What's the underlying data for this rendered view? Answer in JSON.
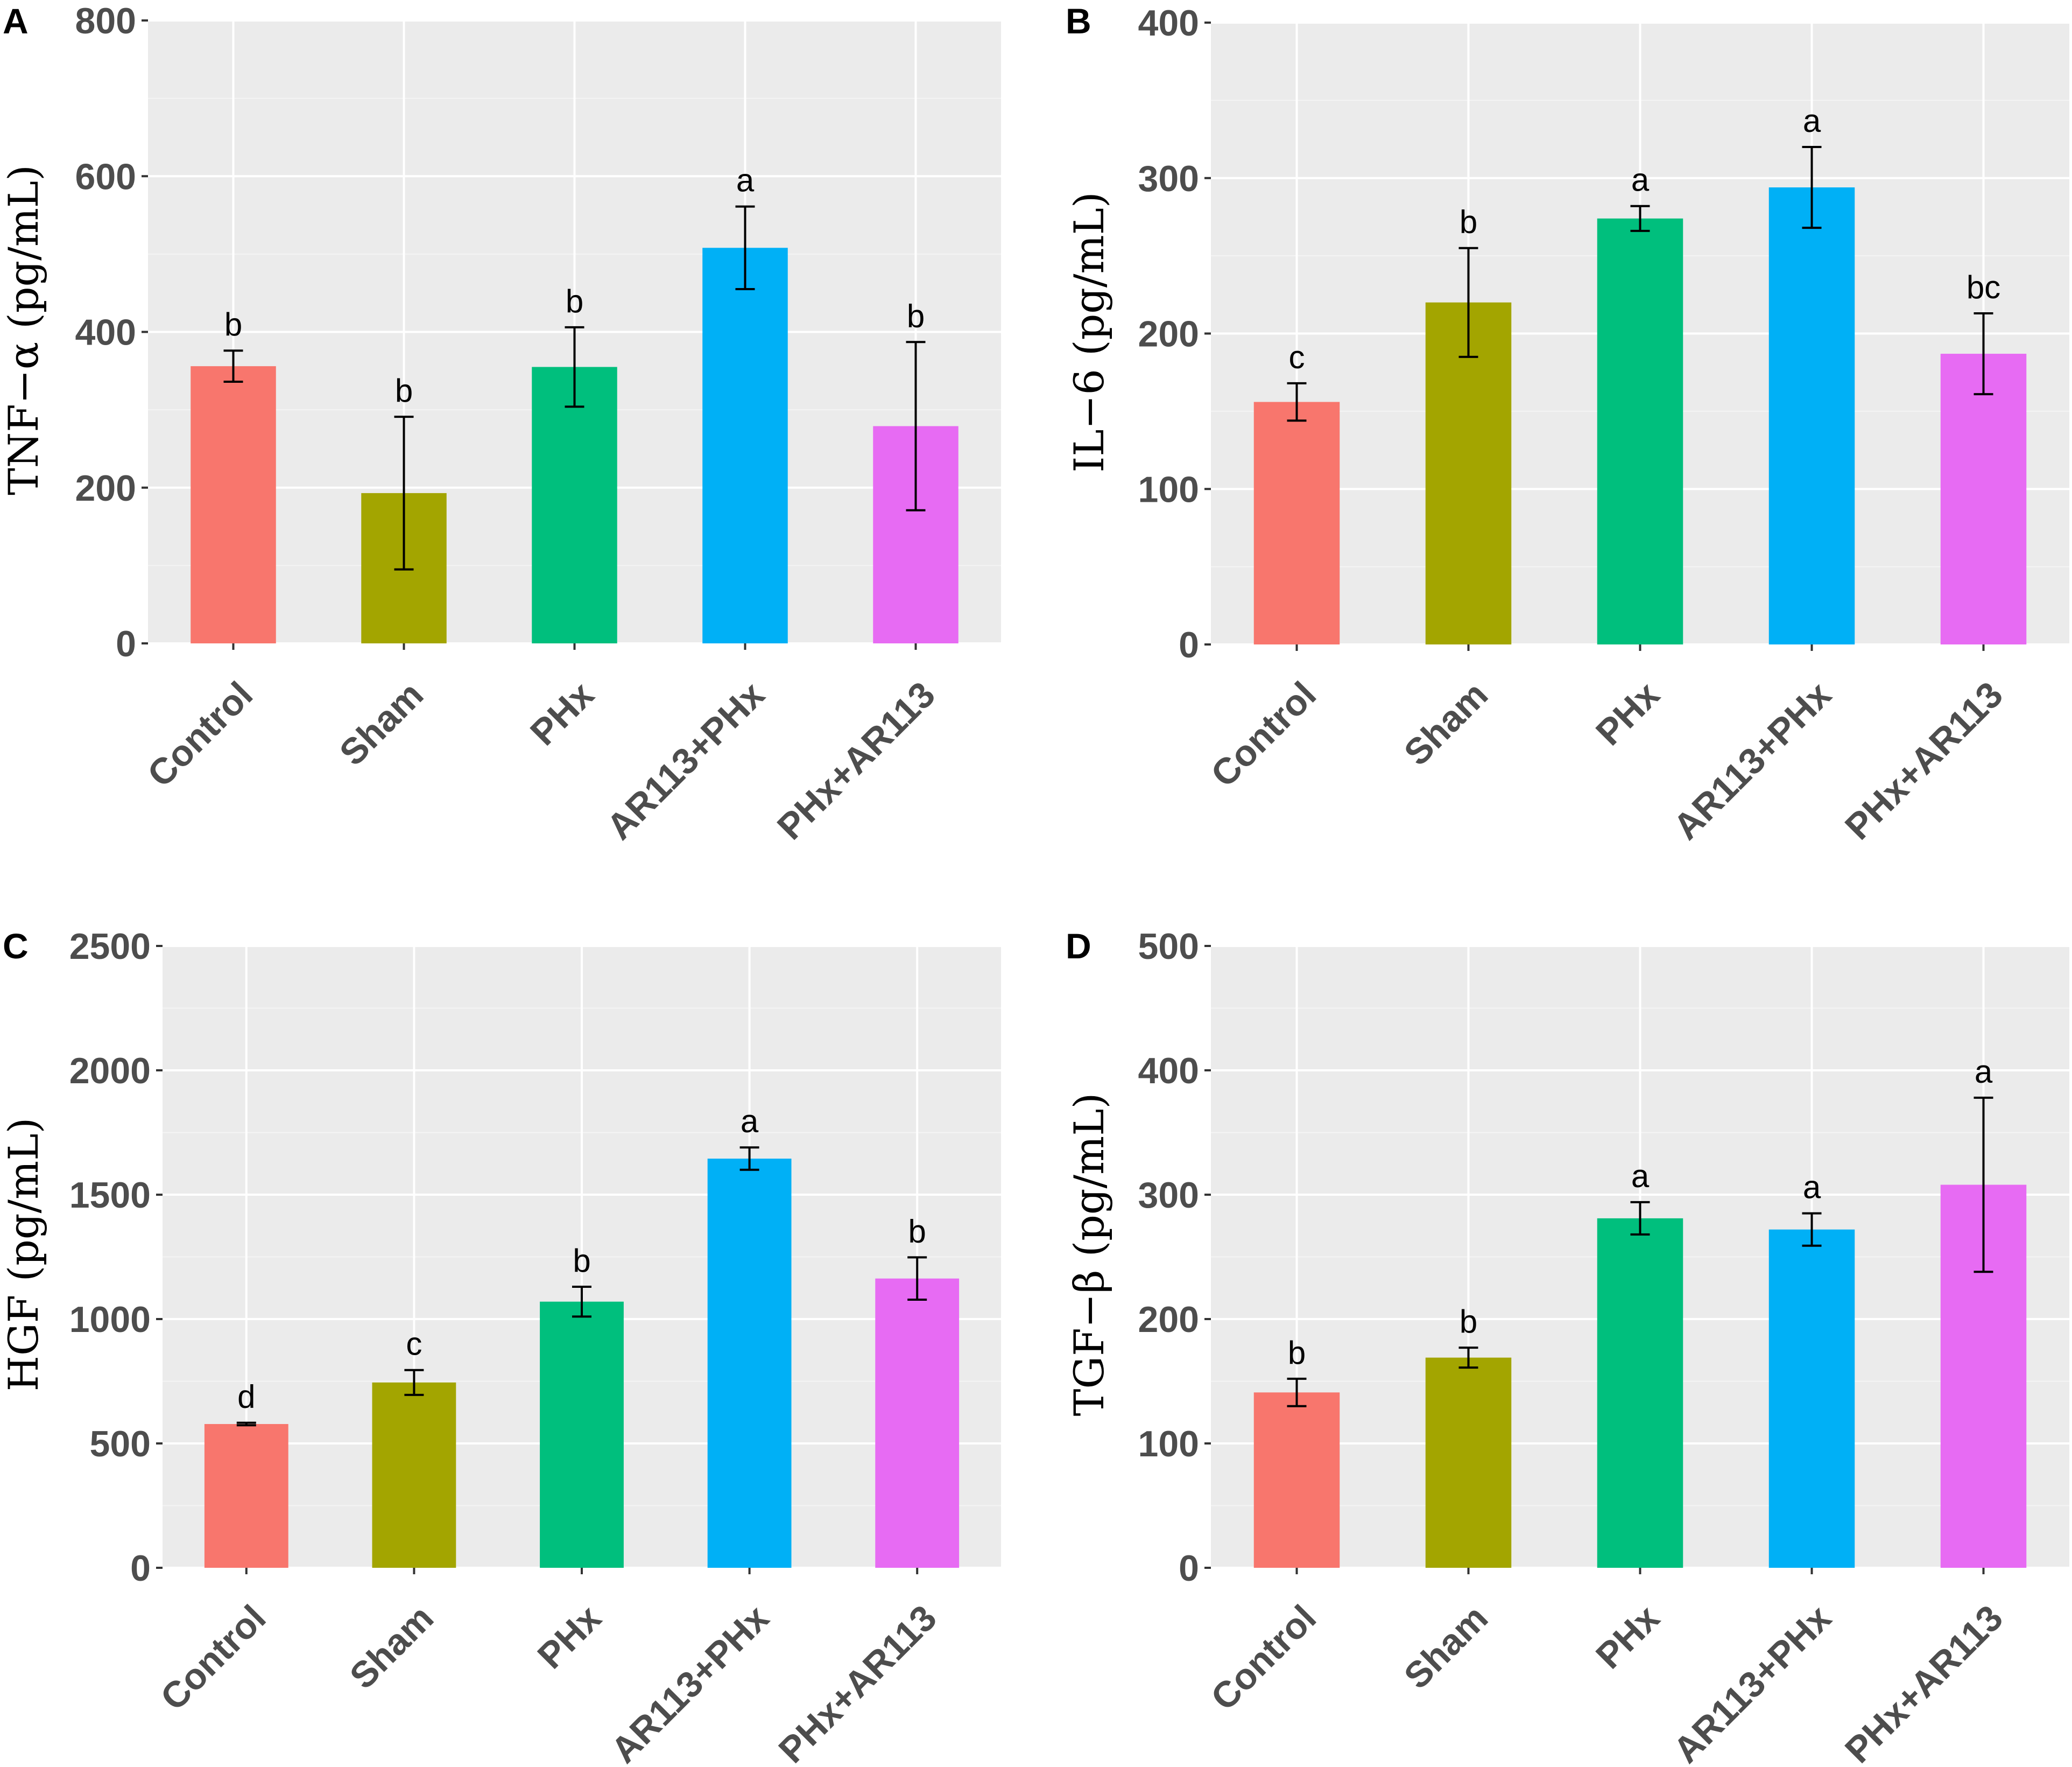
{
  "colors": {
    "panel_bg": "#ebebeb",
    "grid_major": "#ffffff",
    "grid_minor": "#f4f4f4",
    "axis_text": "#4d4d4d",
    "errorbar": "#000000",
    "bars": [
      "#f8766d",
      "#a3a500",
      "#00bf7d",
      "#00b0f6",
      "#e76bf3"
    ]
  },
  "chart_data": [
    {
      "type": "bar",
      "panel": "A",
      "title": "",
      "xlabel": "",
      "ylabel": "TNF−α (pg/mL)",
      "categories": [
        "Control",
        "Sham",
        "PHx",
        "AR113+PHx",
        "PHx+AR113"
      ],
      "values": [
        356,
        193,
        355,
        508,
        279
      ],
      "errors": [
        20,
        98,
        51,
        53,
        108
      ],
      "significance": [
        "b",
        "b",
        "b",
        "a",
        "b"
      ],
      "ylim": [
        0,
        800
      ],
      "yticks": [
        0,
        200,
        400,
        600,
        800
      ],
      "grid": true
    },
    {
      "type": "bar",
      "panel": "B",
      "title": "",
      "xlabel": "",
      "ylabel": "IL−6 (pg/mL)",
      "categories": [
        "Control",
        "Sham",
        "PHx",
        "AR113+PHx",
        "PHx+AR113"
      ],
      "values": [
        156,
        220,
        274,
        294,
        187
      ],
      "errors": [
        12,
        35,
        8,
        26,
        26
      ],
      "significance": [
        "c",
        "b",
        "a",
        "a",
        "bc"
      ],
      "ylim": [
        0,
        400
      ],
      "yticks": [
        0,
        100,
        200,
        300,
        400
      ],
      "grid": true
    },
    {
      "type": "bar",
      "panel": "C",
      "title": "",
      "xlabel": "",
      "ylabel": "HGF (pg/mL)",
      "categories": [
        "Control",
        "Sham",
        "PHx",
        "AR113+PHx",
        "PHx+AR113"
      ],
      "values": [
        578,
        745,
        1070,
        1645,
        1163
      ],
      "errors": [
        5,
        50,
        60,
        45,
        85
      ],
      "significance": [
        "d",
        "c",
        "b",
        "a",
        "b"
      ],
      "ylim": [
        0,
        2500
      ],
      "yticks": [
        0,
        500,
        1000,
        1500,
        2000,
        2500
      ],
      "grid": true
    },
    {
      "type": "bar",
      "panel": "D",
      "title": "",
      "xlabel": "",
      "ylabel": "TGF−β (pg/mL)",
      "categories": [
        "Control",
        "Sham",
        "PHx",
        "AR113+PHx",
        "PHx+AR113"
      ],
      "values": [
        141,
        169,
        281,
        272,
        308
      ],
      "errors": [
        11,
        8,
        13,
        13,
        70
      ],
      "significance": [
        "b",
        "b",
        "a",
        "a",
        "a"
      ],
      "ylim": [
        0,
        500
      ],
      "yticks": [
        0,
        100,
        200,
        300,
        400,
        500
      ],
      "grid": true
    }
  ]
}
